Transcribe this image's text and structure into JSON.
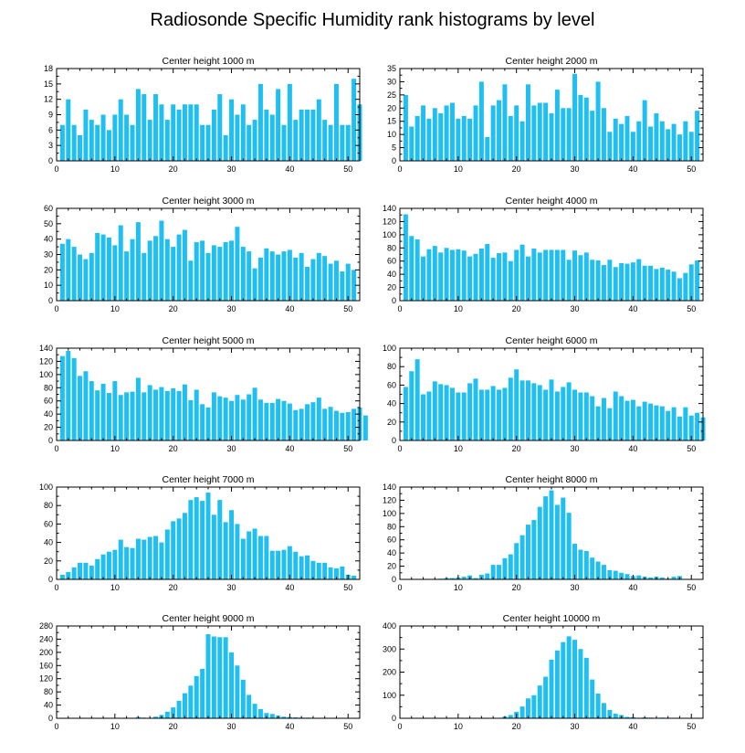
{
  "title": "Radiosonde Specific Humidity rank histograms by level",
  "colors": {
    "bar": "#1ebff2",
    "axis": "#000000",
    "background": "#ffffff"
  },
  "chart_data": [
    {
      "type": "bar",
      "title": "Center height 1000 m",
      "xlim": [
        0,
        52
      ],
      "xticks": [
        0,
        10,
        20,
        30,
        40,
        50
      ],
      "ylim": [
        0,
        18
      ],
      "yticks": [
        0,
        3,
        6,
        9,
        12,
        15,
        18
      ],
      "values": [
        7,
        12,
        7,
        5,
        10,
        8,
        7,
        9,
        6,
        9,
        12,
        9,
        7,
        14,
        13,
        8,
        13,
        11,
        8,
        11,
        10,
        11,
        11,
        11,
        7,
        7,
        10,
        13,
        5,
        12,
        9,
        11,
        7,
        8,
        15,
        10,
        9,
        14,
        7,
        15,
        8,
        10,
        10,
        10,
        12,
        8,
        7,
        15,
        7,
        7,
        16,
        11
      ]
    },
    {
      "type": "bar",
      "title": "Center height 2000 m",
      "xlim": [
        0,
        52
      ],
      "xticks": [
        0,
        10,
        20,
        30,
        40,
        50
      ],
      "ylim": [
        0,
        35
      ],
      "yticks": [
        0,
        5,
        10,
        15,
        20,
        25,
        30,
        35
      ],
      "values": [
        25,
        13,
        17,
        21,
        16,
        20,
        18,
        21,
        22,
        16,
        17,
        16,
        21,
        30,
        9,
        21,
        23,
        29,
        17,
        21,
        15,
        29,
        21,
        22,
        22,
        18,
        27,
        20,
        20,
        33,
        25,
        24,
        19,
        30,
        20,
        11,
        16,
        14,
        17,
        11,
        15,
        23,
        13,
        18,
        15,
        12,
        14,
        10,
        15,
        11,
        19
      ]
    },
    {
      "type": "bar",
      "title": "Center height 3000 m",
      "xlim": [
        0,
        52
      ],
      "xticks": [
        0,
        10,
        20,
        30,
        40,
        50
      ],
      "ylim": [
        0,
        60
      ],
      "yticks": [
        0,
        10,
        20,
        30,
        40,
        50,
        60
      ],
      "values": [
        37,
        40,
        35,
        30,
        27,
        31,
        44,
        43,
        41,
        36,
        49,
        32,
        40,
        51,
        31,
        39,
        42,
        52,
        40,
        35,
        43,
        46,
        26,
        38,
        39,
        31,
        36,
        35,
        38,
        39,
        48,
        35,
        32,
        21,
        28,
        34,
        32,
        30,
        32,
        33,
        28,
        31,
        22,
        27,
        31,
        29,
        24,
        26,
        19,
        24,
        20
      ]
    },
    {
      "type": "bar",
      "title": "Center height 4000 m",
      "xlim": [
        0,
        52
      ],
      "xticks": [
        0,
        10,
        20,
        30,
        40,
        50
      ],
      "ylim": [
        0,
        140
      ],
      "yticks": [
        0,
        20,
        40,
        60,
        80,
        100,
        120,
        140
      ],
      "values": [
        131,
        98,
        93,
        67,
        78,
        83,
        73,
        80,
        77,
        78,
        76,
        67,
        71,
        79,
        86,
        65,
        72,
        73,
        60,
        77,
        85,
        67,
        79,
        73,
        77,
        77,
        77,
        77,
        62,
        76,
        69,
        73,
        62,
        61,
        54,
        62,
        51,
        57,
        56,
        58,
        63,
        53,
        53,
        48,
        50,
        47,
        44,
        34,
        42,
        55,
        61
      ]
    },
    {
      "type": "bar",
      "title": "Center height 5000 m",
      "xlim": [
        0,
        52
      ],
      "xticks": [
        0,
        10,
        20,
        30,
        40,
        50
      ],
      "ylim": [
        0,
        140
      ],
      "yticks": [
        0,
        20,
        40,
        60,
        80,
        100,
        120,
        140
      ],
      "values": [
        128,
        136,
        125,
        98,
        105,
        90,
        76,
        86,
        72,
        90,
        69,
        73,
        74,
        95,
        73,
        84,
        77,
        81,
        75,
        79,
        75,
        85,
        61,
        77,
        55,
        50,
        73,
        67,
        65,
        60,
        69,
        62,
        70,
        80,
        62,
        57,
        57,
        63,
        60,
        56,
        46,
        48,
        55,
        58,
        65,
        48,
        51,
        45,
        42,
        43,
        48,
        50,
        38
      ]
    },
    {
      "type": "bar",
      "title": "Center height 6000 m",
      "xlim": [
        0,
        52
      ],
      "xticks": [
        0,
        10,
        20,
        30,
        40,
        50
      ],
      "ylim": [
        0,
        100
      ],
      "yticks": [
        0,
        20,
        40,
        60,
        80,
        100
      ],
      "values": [
        58,
        75,
        88,
        50,
        53,
        64,
        61,
        60,
        57,
        52,
        52,
        62,
        67,
        55,
        55,
        59,
        55,
        57,
        68,
        77,
        65,
        65,
        62,
        60,
        55,
        66,
        53,
        58,
        63,
        55,
        52,
        52,
        48,
        37,
        46,
        35,
        53,
        48,
        43,
        44,
        37,
        42,
        40,
        38,
        37,
        32,
        36,
        26,
        36,
        27,
        30,
        25
      ]
    },
    {
      "type": "bar",
      "title": "Center height 7000 m",
      "xlim": [
        0,
        52
      ],
      "xticks": [
        0,
        10,
        20,
        30,
        40,
        50
      ],
      "ylim": [
        0,
        100
      ],
      "yticks": [
        0,
        20,
        40,
        60,
        80,
        100
      ],
      "values": [
        5,
        8,
        13,
        18,
        18,
        15,
        22,
        27,
        30,
        32,
        43,
        35,
        34,
        44,
        43,
        46,
        47,
        40,
        54,
        63,
        66,
        72,
        86,
        89,
        85,
        94,
        70,
        86,
        62,
        75,
        60,
        44,
        52,
        55,
        47,
        47,
        31,
        31,
        32,
        36,
        30,
        25,
        26,
        20,
        18,
        18,
        13,
        12,
        14,
        5,
        4
      ]
    },
    {
      "type": "bar",
      "title": "Center height 8000 m",
      "xlim": [
        0,
        52
      ],
      "xticks": [
        0,
        10,
        20,
        30,
        40,
        50
      ],
      "ylim": [
        0,
        140
      ],
      "yticks": [
        0,
        20,
        40,
        60,
        80,
        100,
        120,
        140
      ],
      "values": [
        0,
        0,
        0,
        0,
        0,
        0,
        1,
        2,
        2,
        3,
        4,
        6,
        2,
        7,
        9,
        22,
        22,
        32,
        38,
        55,
        67,
        83,
        90,
        110,
        126,
        135,
        113,
        124,
        101,
        54,
        45,
        43,
        33,
        27,
        22,
        14,
        13,
        10,
        8,
        5,
        6,
        4,
        3,
        4,
        3,
        1,
        4,
        5,
        0,
        0,
        0
      ]
    },
    {
      "type": "bar",
      "title": "Center height 9000 m",
      "xlim": [
        0,
        52
      ],
      "xticks": [
        0,
        10,
        20,
        30,
        40,
        50
      ],
      "ylim": [
        0,
        280
      ],
      "yticks": [
        0,
        40,
        80,
        120,
        160,
        200,
        240,
        280
      ],
      "values": [
        0,
        0,
        0,
        0,
        0,
        0,
        0,
        0,
        0,
        0,
        0,
        0,
        0,
        4,
        2,
        1,
        5,
        10,
        20,
        33,
        53,
        76,
        99,
        128,
        150,
        255,
        248,
        246,
        246,
        200,
        160,
        117,
        71,
        44,
        28,
        16,
        13,
        8,
        5,
        4,
        3,
        2,
        2,
        1,
        1,
        0,
        0,
        0,
        0,
        0,
        0
      ]
    },
    {
      "type": "bar",
      "title": "Center height 10000 m",
      "xlim": [
        0,
        52
      ],
      "xticks": [
        0,
        10,
        20,
        30,
        40,
        50
      ],
      "ylim": [
        0,
        400
      ],
      "yticks": [
        0,
        100,
        200,
        300,
        400
      ],
      "values": [
        0,
        0,
        0,
        0,
        0,
        0,
        0,
        0,
        0,
        0,
        0,
        0,
        0,
        0,
        0,
        0,
        0,
        8,
        14,
        28,
        51,
        86,
        100,
        142,
        180,
        254,
        294,
        330,
        355,
        340,
        300,
        262,
        168,
        107,
        66,
        36,
        20,
        14,
        6,
        5,
        2,
        4,
        3,
        2,
        3,
        1,
        1,
        0,
        0,
        0,
        0
      ]
    }
  ]
}
